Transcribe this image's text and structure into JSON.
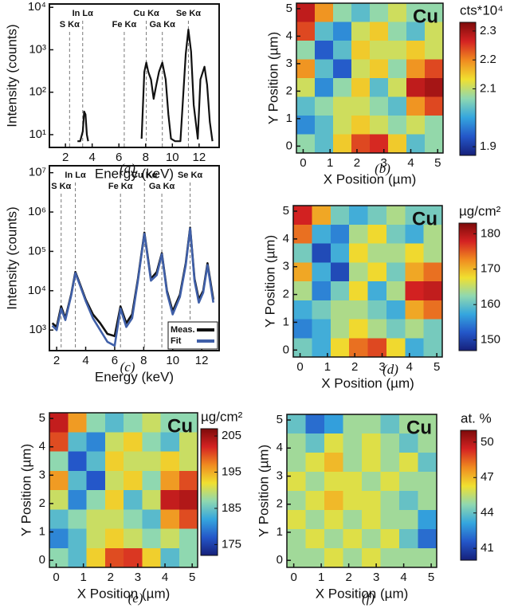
{
  "chart_data": [
    {
      "type": "line",
      "label": "(a)",
      "xlabel": "Energy (keV)",
      "ylabel": "Intensity (counts)",
      "ylog": true,
      "xlim": [
        0.8,
        13.5
      ],
      "xticks": [
        2,
        4,
        6,
        8,
        10,
        12
      ],
      "ylim": [
        5,
        12000
      ],
      "yticks": [
        {
          "value": 10,
          "label": "10¹"
        },
        {
          "value": 100,
          "label": "10²"
        },
        {
          "value": 1000,
          "label": "10³"
        },
        {
          "value": 10000,
          "label": "10⁴"
        }
      ],
      "annotations": [
        {
          "label": "S Kα",
          "x": 2.31
        },
        {
          "label": "In Lα",
          "x": 3.29
        },
        {
          "label": "Fe Kα",
          "x": 6.4
        },
        {
          "label": "Cu Kα",
          "x": 8.05
        },
        {
          "label": "Ga Kα",
          "x": 9.25
        },
        {
          "label": "Se Kα",
          "x": 11.2
        }
      ],
      "color": "#111111",
      "x": [
        2.9,
        3.1,
        3.3,
        3.4,
        3.5,
        3.6,
        3.7,
        5.0,
        7.7,
        7.9,
        8.05,
        8.2,
        8.4,
        8.6,
        8.8,
        9.0,
        9.25,
        9.5,
        9.7,
        9.9,
        10.2,
        10.6,
        11.0,
        11.2,
        11.4,
        11.6,
        11.9,
        12.1,
        12.4,
        12.6,
        12.8,
        13.0
      ],
      "values": [
        7,
        7,
        12,
        35,
        30,
        10,
        7,
        null,
        8,
        300,
        500,
        300,
        200,
        70,
        150,
        300,
        500,
        200,
        30,
        8,
        7,
        7,
        800,
        3000,
        900,
        50,
        8,
        200,
        400,
        150,
        20,
        7
      ]
    },
    {
      "type": "heatmap",
      "label": "(b)",
      "title": "Cu",
      "colorbar_label": "cts*10⁴",
      "xlabel": "X Position (µm)",
      "ylabel": "Y Position (µm)",
      "xlim": [
        -0.25,
        5.2
      ],
      "ylim": [
        -0.25,
        5.2
      ],
      "xticks": [
        0,
        1,
        2,
        3,
        4,
        5
      ],
      "yticks": [
        0,
        1,
        2,
        3,
        4,
        5
      ],
      "clim": [
        1.87,
        2.33
      ],
      "cticks": [
        1.9,
        2.1,
        2.2,
        2.3
      ],
      "colormap": [
        "#16207a",
        "#2457c9",
        "#35a6de",
        "#8fd8b0",
        "#f0e030",
        "#f08a20",
        "#d42222",
        "#7d0a0a"
      ],
      "z": [
        [
          2.28,
          2.19,
          2.07,
          2.03,
          2.07,
          2.11,
          2.07,
          2.07
        ],
        [
          2.24,
          2.03,
          1.98,
          2.11,
          2.15,
          2.07,
          2.03,
          2.11
        ],
        [
          2.07,
          1.94,
          2.03,
          2.15,
          2.11,
          2.11,
          2.15,
          2.11
        ],
        [
          2.19,
          2.03,
          1.94,
          2.11,
          2.15,
          2.07,
          2.19,
          2.24
        ],
        [
          2.11,
          1.98,
          2.07,
          2.15,
          2.03,
          2.11,
          2.28,
          2.3
        ],
        [
          2.03,
          2.07,
          2.11,
          2.11,
          2.07,
          2.03,
          2.19,
          2.24
        ],
        [
          1.98,
          2.03,
          2.11,
          2.15,
          2.11,
          2.07,
          2.11,
          2.07
        ],
        [
          2.07,
          2.03,
          2.15,
          2.24,
          2.26,
          2.15,
          2.03,
          2.07
        ]
      ]
    },
    {
      "type": "line",
      "label": "(c)",
      "xlabel": "Energy (keV)",
      "ylabel": "Intensity (counts)",
      "ylog": true,
      "xlim": [
        1.5,
        13.2
      ],
      "xticks": [
        2,
        4,
        6,
        8,
        10,
        12
      ],
      "ylim": [
        300,
        15000000
      ],
      "yticks": [
        {
          "value": 1000,
          "label": "10³"
        },
        {
          "value": 10000,
          "label": "10⁴"
        },
        {
          "value": 100000,
          "label": "10⁵"
        },
        {
          "value": 1000000,
          "label": "10⁶"
        },
        {
          "value": 10000000,
          "label": "10⁷"
        }
      ],
      "annotations": [
        {
          "label": "S Kα",
          "x": 2.31
        },
        {
          "label": "In Lα",
          "x": 3.29
        },
        {
          "label": "Fe Kα",
          "x": 6.4
        },
        {
          "label": "Cu Kα",
          "x": 8.05
        },
        {
          "label": "Ga Kα",
          "x": 9.25
        },
        {
          "label": "Se Kα",
          "x": 11.2
        }
      ],
      "legend": "lower right",
      "x": [
        1.7,
        2.0,
        2.31,
        2.6,
        3.0,
        3.29,
        3.6,
        4.0,
        4.5,
        5.0,
        5.5,
        6.0,
        6.4,
        6.8,
        7.2,
        7.6,
        8.05,
        8.5,
        8.9,
        9.25,
        9.6,
        10.0,
        10.5,
        10.9,
        11.2,
        11.5,
        11.8,
        12.1,
        12.4,
        12.8
      ],
      "series": [
        {
          "name": "Meas.",
          "color": "#111111",
          "values": [
            1500,
            1200,
            4000,
            2000,
            8000,
            30000,
            15000,
            6000,
            2500,
            1500,
            800,
            700,
            4000,
            1500,
            2500,
            20000,
            300000,
            20000,
            30000,
            90000,
            10000,
            3000,
            8000,
            50000,
            400000,
            20000,
            6000,
            10000,
            50000,
            6000
          ]
        },
        {
          "name": "Fit",
          "color": "#3f5fa8",
          "values": [
            1300,
            1000,
            3500,
            1800,
            7500,
            28000,
            14000,
            5500,
            2000,
            1000,
            500,
            400,
            3500,
            1200,
            2000,
            18000,
            280000,
            18000,
            25000,
            85000,
            9000,
            2500,
            7000,
            45000,
            380000,
            18000,
            5000,
            9000,
            45000,
            5000
          ]
        }
      ]
    },
    {
      "type": "heatmap",
      "label": "(d)",
      "title": "Cu",
      "colorbar_label": "µg/cm²",
      "xlabel": "X Position (µm)",
      "ylabel": "Y Position (µm)",
      "xlim": [
        -0.25,
        5.2
      ],
      "ylim": [
        -0.25,
        5.2
      ],
      "xticks": [
        0,
        1,
        2,
        3,
        4,
        5
      ],
      "yticks": [
        0,
        1,
        2,
        3,
        4,
        5
      ],
      "clim": [
        147,
        183
      ],
      "cticks": [
        150,
        160,
        170,
        180
      ],
      "colormap": [
        "#16207a",
        "#2457c9",
        "#35a6de",
        "#8fd8b0",
        "#f0e030",
        "#f08a20",
        "#d42222",
        "#7d0a0a"
      ],
      "z": [
        [
          178,
          171,
          161,
          158,
          161,
          164,
          161,
          161
        ],
        [
          174,
          158,
          155,
          164,
          168,
          161,
          158,
          164
        ],
        [
          161,
          151,
          158,
          168,
          164,
          164,
          168,
          164
        ],
        [
          171,
          158,
          151,
          164,
          168,
          161,
          171,
          174
        ],
        [
          164,
          155,
          161,
          168,
          158,
          164,
          178,
          179
        ],
        [
          158,
          161,
          164,
          164,
          161,
          158,
          171,
          174
        ],
        [
          155,
          158,
          164,
          168,
          164,
          161,
          164,
          161
        ],
        [
          161,
          158,
          168,
          174,
          176,
          168,
          158,
          161
        ]
      ]
    },
    {
      "type": "heatmap",
      "label": "(e)",
      "title": "Cu",
      "colorbar_label": "µg/cm²",
      "xlabel": "X Position (µm)",
      "ylabel": "Y Position (µm)",
      "xlim": [
        -0.25,
        5.2
      ],
      "ylim": [
        -0.25,
        5.2
      ],
      "xticks": [
        0,
        1,
        2,
        3,
        4,
        5
      ],
      "yticks": [
        0,
        1,
        2,
        3,
        4,
        5
      ],
      "clim": [
        172,
        207
      ],
      "cticks": [
        175,
        185,
        195,
        205
      ],
      "colormap": [
        "#16207a",
        "#2457c9",
        "#35a6de",
        "#8fd8b0",
        "#f0e030",
        "#f08a20",
        "#d42222",
        "#7d0a0a"
      ],
      "z": [
        [
          203,
          196,
          187,
          184,
          187,
          190,
          187,
          187
        ],
        [
          200,
          184,
          180,
          190,
          193,
          187,
          184,
          190
        ],
        [
          187,
          177,
          184,
          193,
          190,
          190,
          193,
          190
        ],
        [
          196,
          184,
          177,
          190,
          193,
          187,
          196,
          200
        ],
        [
          190,
          180,
          187,
          193,
          184,
          190,
          203,
          204
        ],
        [
          184,
          187,
          190,
          190,
          187,
          184,
          196,
          200
        ],
        [
          180,
          184,
          190,
          193,
          190,
          187,
          190,
          187
        ],
        [
          187,
          184,
          193,
          200,
          201,
          193,
          184,
          187
        ]
      ]
    },
    {
      "type": "heatmap",
      "label": "(f)",
      "title": "Cu",
      "colorbar_label": "at. %",
      "xlabel": "X Position (µm)",
      "ylabel": "Y Position (µm)",
      "xlim": [
        -0.25,
        5.2
      ],
      "ylim": [
        -0.25,
        5.2
      ],
      "xticks": [
        0,
        1,
        2,
        3,
        4,
        5
      ],
      "yticks": [
        0,
        1,
        2,
        3,
        4,
        5
      ],
      "clim": [
        40,
        51
      ],
      "cticks": [
        41,
        44,
        47,
        50
      ],
      "colormap": [
        "#16207a",
        "#2457c9",
        "#35a6de",
        "#8fd8b0",
        "#f0e030",
        "#f08a20",
        "#d42222",
        "#7d0a0a"
      ],
      "z": [
        [
          44,
          42,
          43,
          45,
          45,
          44,
          45,
          45
        ],
        [
          45,
          44,
          46,
          45,
          46,
          45,
          44,
          45
        ],
        [
          45,
          46,
          47,
          45,
          46,
          45,
          46,
          44
        ],
        [
          46,
          45,
          46,
          46,
          45,
          46,
          45,
          45
        ],
        [
          45,
          46,
          47,
          46,
          46,
          45,
          44,
          45
        ],
        [
          46,
          45,
          46,
          45,
          46,
          45,
          45,
          43
        ],
        [
          45,
          46,
          45,
          46,
          45,
          46,
          44,
          42
        ],
        [
          45,
          45,
          46,
          45,
          46,
          45,
          45,
          45
        ]
      ]
    }
  ]
}
